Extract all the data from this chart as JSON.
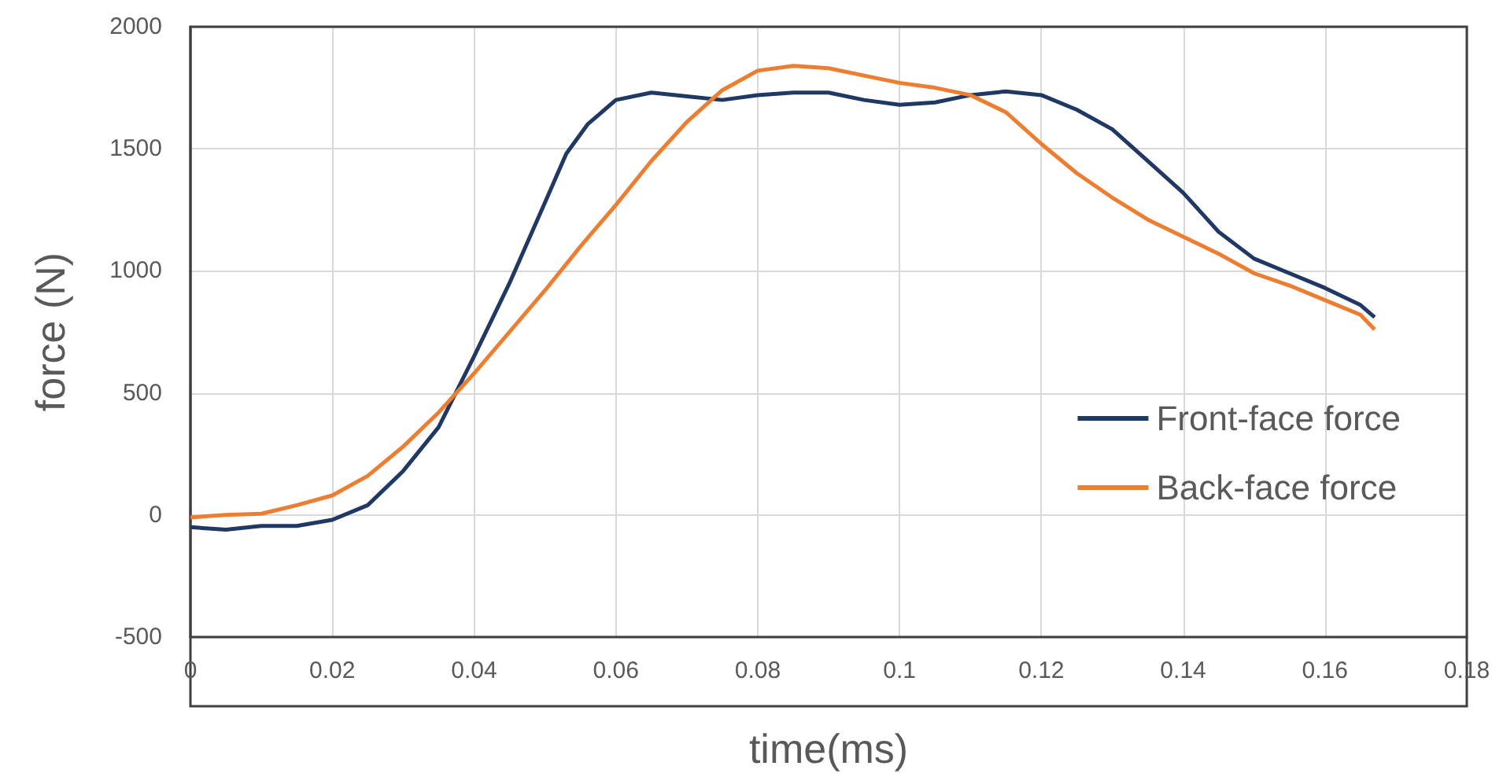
{
  "chart_data": {
    "type": "line",
    "xlabel": "time(ms)",
    "ylabel": "force (N)",
    "xlim": [
      0,
      0.18
    ],
    "xticks": [
      0,
      0.02,
      0.04,
      0.06,
      0.08,
      0.1,
      0.12,
      0.14,
      0.16,
      0.18
    ],
    "ylim": [
      -500,
      2000
    ],
    "yticks": [
      -500,
      0,
      500,
      1000,
      1500,
      2000
    ],
    "grid": true,
    "legend": "right",
    "marker": "none",
    "line_style": "solid",
    "series": [
      {
        "name": "Front-face force",
        "color": "#203864",
        "x": [
          0,
          0.005,
          0.01,
          0.015,
          0.02,
          0.025,
          0.03,
          0.035,
          0.04,
          0.045,
          0.05,
          0.053,
          0.056,
          0.06,
          0.065,
          0.07,
          0.075,
          0.08,
          0.085,
          0.09,
          0.095,
          0.1,
          0.105,
          0.11,
          0.115,
          0.12,
          0.125,
          0.13,
          0.135,
          0.14,
          0.145,
          0.15,
          0.155,
          0.16,
          0.165,
          0.167
        ],
        "values": [
          -50,
          -60,
          -45,
          -45,
          -20,
          40,
          180,
          360,
          650,
          950,
          1280,
          1480,
          1600,
          1700,
          1730,
          1715,
          1700,
          1720,
          1730,
          1730,
          1700,
          1680,
          1690,
          1720,
          1735,
          1720,
          1660,
          1580,
          1450,
          1320,
          1160,
          1050,
          990,
          930,
          860,
          810
        ]
      },
      {
        "name": "Back-face force",
        "color": "#ed7d31",
        "x": [
          0,
          0.005,
          0.01,
          0.015,
          0.02,
          0.025,
          0.03,
          0.035,
          0.04,
          0.045,
          0.05,
          0.055,
          0.06,
          0.065,
          0.07,
          0.075,
          0.08,
          0.085,
          0.09,
          0.095,
          0.1,
          0.105,
          0.11,
          0.115,
          0.12,
          0.125,
          0.13,
          0.135,
          0.14,
          0.145,
          0.15,
          0.155,
          0.16,
          0.165,
          0.167
        ],
        "values": [
          -10,
          0,
          5,
          40,
          80,
          160,
          280,
          420,
          580,
          750,
          920,
          1100,
          1270,
          1450,
          1610,
          1740,
          1820,
          1840,
          1830,
          1800,
          1770,
          1750,
          1720,
          1650,
          1520,
          1400,
          1300,
          1210,
          1140,
          1070,
          990,
          940,
          880,
          820,
          760
        ]
      }
    ]
  }
}
